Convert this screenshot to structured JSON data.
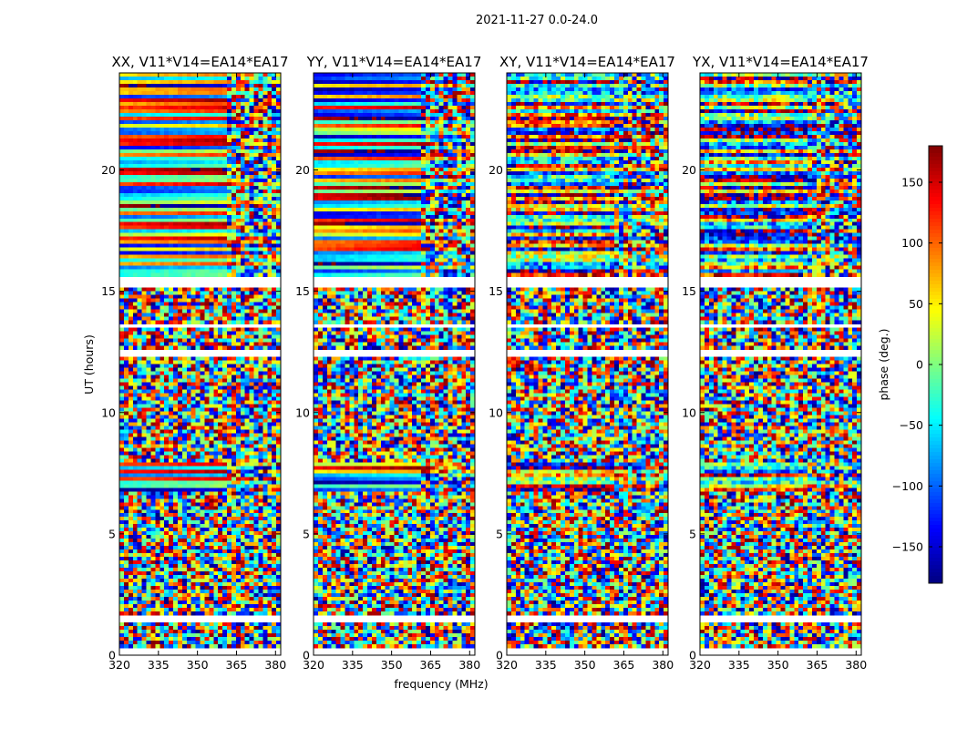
{
  "chart_data": {
    "type": "heatmap",
    "suptitle": "2021-11-27 0.0-24.0",
    "panels": [
      {
        "title": "XX, V11*V14=EA14*EA17",
        "pol": "XX"
      },
      {
        "title": "YY, V11*V14=EA14*EA17",
        "pol": "YY"
      },
      {
        "title": "XY, V11*V14=EA14*EA17",
        "pol": "XY"
      },
      {
        "title": "YX, V11*V14=EA14*EA17",
        "pol": "YX"
      }
    ],
    "xlabel": "frequency (MHz)",
    "ylabel": "UT (hours)",
    "xlim": [
      320,
      382
    ],
    "ylim": [
      0,
      24
    ],
    "x_ticks": [
      320,
      335,
      350,
      365,
      380
    ],
    "y_ticks": [
      0,
      5,
      10,
      15,
      20
    ],
    "y_tick_labels": [
      "0",
      "5",
      "10",
      "15",
      "20"
    ],
    "colormap": "jet",
    "colorbar": {
      "label": "phase (deg.)",
      "range": [
        -180,
        180
      ],
      "ticks": [
        -150,
        -100,
        -50,
        0,
        50,
        100,
        150
      ],
      "tick_labels": [
        "−150",
        "−100",
        "−50",
        "0",
        "50",
        "100",
        "150"
      ]
    },
    "coherent_ut_ranges": [
      [
        6.8,
        8.0
      ],
      [
        15.6,
        24.0
      ]
    ],
    "flagged_ut_ranges": [
      [
        1.3,
        1.6
      ],
      [
        12.3,
        12.6
      ],
      [
        13.5,
        13.7
      ],
      [
        15.2,
        15.6
      ],
      [
        0.0,
        0.3
      ]
    ],
    "grid": false
  }
}
